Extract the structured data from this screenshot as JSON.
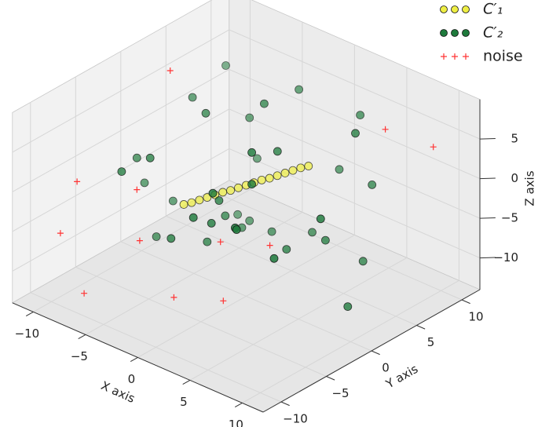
{
  "chart_data": {
    "type": "scatter3d",
    "x_label": "X axis",
    "y_label": "Y axis",
    "z_label": "Z axis",
    "xlim": [
      -12,
      12
    ],
    "ylim": [
      -12,
      12
    ],
    "zlim": [
      -14,
      10
    ],
    "xticks": [
      {
        "value": -10,
        "label": "−10"
      },
      {
        "value": -5,
        "label": "−5"
      },
      0,
      5,
      10
    ],
    "yticks": [
      {
        "value": -10,
        "label": "−10"
      },
      {
        "value": -5,
        "label": "−5"
      },
      0,
      5,
      10
    ],
    "zticks": [
      {
        "value": -10,
        "label": "−10"
      },
      {
        "value": -5,
        "label": "−5"
      },
      0,
      5
    ],
    "grid": true,
    "legend": "upper right",
    "series": [
      {
        "name": "C′₁",
        "marker": "circle",
        "color": "#eeee44",
        "x": [
          -3.2,
          -2.8,
          -2.4,
          -2,
          -1.6,
          -1.2,
          -0.8,
          -0.4,
          0,
          0.4,
          0.8,
          1.2,
          1.6,
          2,
          2.4,
          2.8,
          3.2
        ],
        "y": [
          -3.2,
          -2.8,
          -2.4,
          -2,
          -1.6,
          -1.2,
          -0.8,
          -0.4,
          0,
          0.4,
          0.8,
          1.2,
          1.6,
          2,
          2.4,
          2.8,
          3.2
        ],
        "z": [
          -2.2,
          -2,
          -1.7,
          -1.4,
          -1.1,
          -0.8,
          -0.6,
          -0.3,
          0,
          0.3,
          0.6,
          0.8,
          1.1,
          1.4,
          1.7,
          2,
          2.2
        ]
      },
      {
        "name": "C′₂",
        "marker": "circle",
        "color": "#1e7a3c",
        "x": [
          -8,
          -6,
          -4,
          -2,
          0,
          2,
          4,
          6,
          8,
          -7,
          -5,
          -3,
          -1,
          1,
          3,
          5,
          7,
          -8,
          -6,
          -4,
          -2,
          0,
          2,
          4,
          6,
          8,
          -7,
          -5,
          -3,
          -1,
          1,
          3,
          5,
          7,
          -6,
          -2,
          2,
          6,
          -4,
          4
        ],
        "y": [
          7,
          -3,
          5,
          -6,
          2,
          8,
          -4,
          6,
          -1,
          0,
          -8,
          3,
          7,
          -5,
          1,
          -7,
          4,
          -2,
          6,
          -6,
          0,
          -3,
          5,
          8,
          -8,
          2,
          -4,
          7,
          -1,
          4,
          -7,
          0,
          3,
          -5,
          1,
          -2,
          -6,
          7,
          5,
          -4
        ],
        "z": [
          6,
          -8,
          3,
          -4,
          9,
          -2,
          5,
          -10,
          1,
          -6,
          4,
          -9,
          7,
          -1,
          -7,
          2,
          8,
          -3,
          -11,
          5,
          -5,
          0,
          -8,
          6,
          3,
          -12,
          2,
          -4,
          8,
          -9,
          1,
          6,
          -6,
          -2,
          7,
          -7,
          4,
          -1,
          -10,
          9
        ]
      },
      {
        "name": "noise",
        "marker": "plus",
        "color": "#ff3333",
        "x": [
          -9,
          -11,
          -10,
          -6,
          9,
          11,
          0,
          4,
          3,
          -5,
          -7,
          1
        ],
        "y": [
          2,
          -6,
          -9,
          -11,
          5,
          8,
          -8,
          -2,
          -6,
          -6,
          -4,
          -4
        ],
        "z": [
          8,
          -2,
          -6,
          -10,
          9,
          6,
          -9,
          -4,
          -9,
          -6,
          -2,
          -4
        ]
      }
    ]
  }
}
